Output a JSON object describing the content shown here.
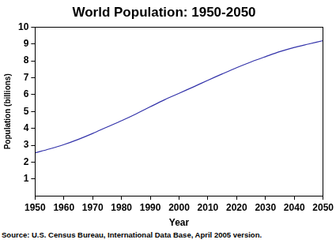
{
  "chart_data": {
    "type": "line",
    "title": "World Population: 1950-2050",
    "x_label": "Year",
    "y_label": "Population (billions)",
    "source": "Source: U.S. Census Bureau, International Data Base, April 2005 version.",
    "x": [
      1950,
      1955,
      1960,
      1965,
      1970,
      1975,
      1980,
      1985,
      1990,
      1995,
      2000,
      2005,
      2010,
      2015,
      2020,
      2025,
      2030,
      2035,
      2040,
      2045,
      2050
    ],
    "values": [
      2.55,
      2.78,
      3.04,
      3.35,
      3.7,
      4.08,
      4.45,
      4.85,
      5.28,
      5.7,
      6.08,
      6.46,
      6.85,
      7.23,
      7.6,
      7.94,
      8.25,
      8.55,
      8.8,
      9.0,
      9.2
    ],
    "color": "#3333aa",
    "xlim": [
      1950,
      2050
    ],
    "xticks": [
      1950,
      1960,
      1970,
      1980,
      1990,
      2000,
      2010,
      2020,
      2030,
      2040,
      2050
    ],
    "ylim": [
      0,
      10
    ],
    "yticks": [
      1,
      2,
      3,
      4,
      5,
      6,
      7,
      8,
      9,
      10
    ],
    "grid": false
  }
}
